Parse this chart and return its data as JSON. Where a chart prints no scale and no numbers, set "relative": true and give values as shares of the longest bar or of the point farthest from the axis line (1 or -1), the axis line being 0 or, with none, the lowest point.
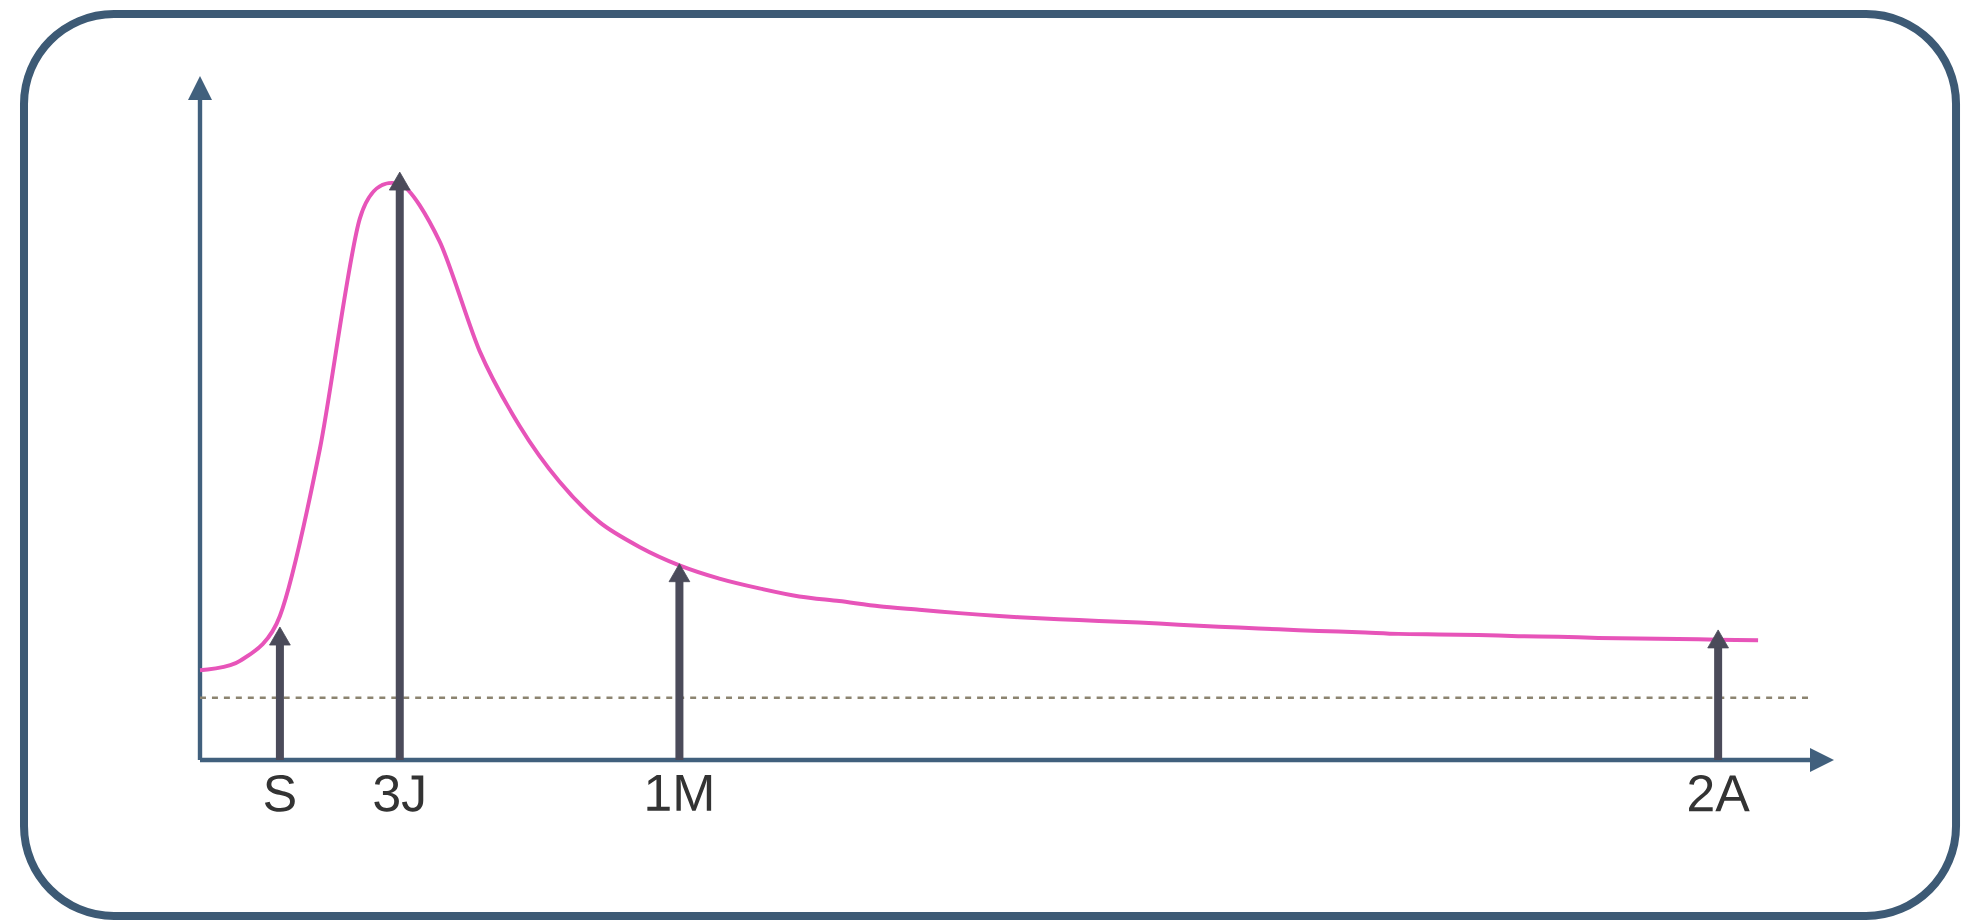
{
  "chart_data": {
    "type": "line",
    "relative": true,
    "categories": [
      null,
      null,
      "S",
      null,
      null,
      "3J",
      null,
      null,
      null,
      null,
      null,
      null,
      "1M",
      null,
      null,
      null,
      null,
      null,
      null,
      null,
      null,
      null,
      null,
      null,
      null,
      null,
      null,
      null,
      null,
      null,
      null,
      null,
      null,
      null,
      null,
      null,
      null,
      null,
      "2A",
      null
    ],
    "series": [
      {
        "color": "#e754b9",
        "marker": "none",
        "values": [
          0.156,
          0.172,
          0.25,
          0.54,
          0.94,
          1.0,
          0.9,
          0.71,
          0.58,
          0.483,
          0.413,
          0.37,
          0.338,
          0.315,
          0.298,
          0.284,
          0.276,
          0.267,
          0.261,
          0.255,
          0.25,
          0.246,
          0.243,
          0.24,
          0.237,
          0.233,
          0.23,
          0.227,
          0.224,
          0.222,
          0.219,
          0.218,
          0.217,
          0.215,
          0.214,
          0.212,
          0.211,
          0.21,
          0.209,
          0.208
        ]
      },
      {
        "type": "lollipop",
        "color": "#4b4b5a",
        "marker": "triangle",
        "values": [
          null,
          null,
          0.21,
          null,
          null,
          1.0,
          null,
          null,
          null,
          null,
          null,
          null,
          0.32,
          null,
          null,
          null,
          null,
          null,
          null,
          null,
          null,
          null,
          null,
          null,
          null,
          null,
          null,
          null,
          null,
          null,
          null,
          null,
          null,
          null,
          null,
          null,
          null,
          null,
          0.205,
          null
        ]
      }
    ],
    "ref_lines": [
      {
        "axis": "y",
        "value": 0.108,
        "color": "#8c8470",
        "line_style": "dashed"
      }
    ]
  }
}
